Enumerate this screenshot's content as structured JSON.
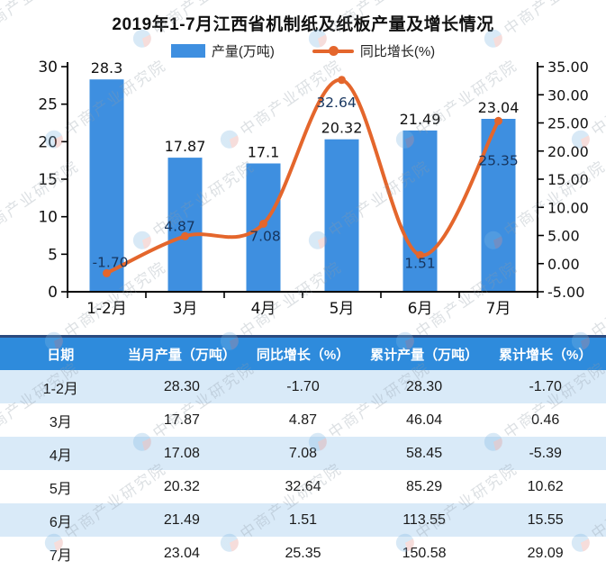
{
  "chart": {
    "title": "2019年1-7月江西省机制纸及纸板产量及增长情况",
    "legend": {
      "bar_label": "产量(万吨)",
      "line_label": "同比增长(%)"
    }
  },
  "chart_data": {
    "type": "bar+line",
    "title": "2019年1-7月江西省机制纸及纸板产量及增长情况",
    "categories": [
      "1-2月",
      "3月",
      "4月",
      "5月",
      "6月",
      "7月"
    ],
    "series": [
      {
        "name": "产量(万吨)",
        "type": "bar",
        "axis": "left",
        "values": [
          28.3,
          17.87,
          17.1,
          20.32,
          21.49,
          23.04
        ],
        "labels": [
          "28.3",
          "17.87",
          "17.1",
          "20.32",
          "21.49",
          "23.04"
        ]
      },
      {
        "name": "同比增长(%)",
        "type": "line",
        "axis": "right",
        "values": [
          -1.7,
          4.87,
          7.08,
          32.64,
          1.51,
          25.35
        ],
        "labels": [
          "-1.70",
          "4.87",
          "7.08",
          "32.64",
          "1.51",
          "25.35"
        ]
      }
    ],
    "left_axis": {
      "min": 0,
      "max": 30,
      "step": 5,
      "tick_labels": [
        "0",
        "5",
        "10",
        "15",
        "20",
        "25",
        "30"
      ]
    },
    "right_axis": {
      "min": -5,
      "max": 35,
      "step": 5,
      "tick_labels": [
        "-5.00",
        "0.00",
        "5.00",
        "10.00",
        "15.00",
        "20.00",
        "25.00",
        "30.00",
        "35.00"
      ]
    },
    "grid": false,
    "legend_position": "top"
  },
  "table": {
    "headers": [
      "日期",
      "当月产量（万吨）",
      "同比增长（%）",
      "累计产量（万吨）",
      "累计增长（%）"
    ],
    "rows": [
      [
        "1-2月",
        "28.30",
        "-1.70",
        "28.30",
        "-1.70"
      ],
      [
        "3月",
        "17.87",
        "4.87",
        "46.04",
        "0.46"
      ],
      [
        "4月",
        "17.08",
        "7.08",
        "58.45",
        "-5.39"
      ],
      [
        "5月",
        "20.32",
        "32.64",
        "85.29",
        "10.62"
      ],
      [
        "6月",
        "21.49",
        "1.51",
        "113.55",
        "15.55"
      ],
      [
        "7月",
        "23.04",
        "25.35",
        "150.58",
        "29.09"
      ]
    ]
  },
  "watermark": {
    "text": "中商产业研究院"
  },
  "colors": {
    "bar": "#3e8fe0",
    "line": "#e4662c",
    "bar_label": "#111111",
    "line_label": "#16355e",
    "axis": "#000000",
    "table_header_bg": "#2e8bdc",
    "table_header_text": "#ffffff",
    "table_alt_row_bg": "#d9eaf8",
    "divider": "#2b4a7e",
    "watermark_text": "#8f9ba6"
  }
}
